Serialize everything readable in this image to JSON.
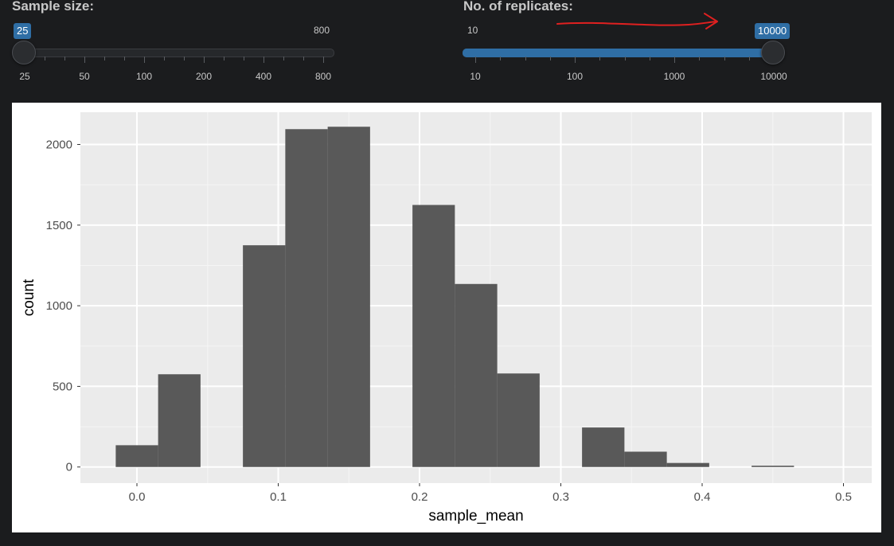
{
  "sample_size": {
    "label": "Sample size:",
    "min_label": "25",
    "max_label": "800",
    "value_label": "25",
    "ticks": [
      "25",
      "50",
      "100",
      "200",
      "400",
      "800"
    ]
  },
  "replicates": {
    "label": "No. of replicates:",
    "min_label": "10",
    "value_label": "10000",
    "ticks": [
      "10",
      "100",
      "1000",
      "10000"
    ],
    "annotation": "red-arrow-annotation"
  },
  "colors": {
    "accent": "#2f6ea5",
    "panel_bg": "#ebebeb",
    "bar_fill": "#595959",
    "annotation": "#e02020"
  },
  "chart_data": {
    "type": "bar",
    "xlabel": "sample_mean",
    "ylabel": "count",
    "xlim": [
      -0.04,
      0.52
    ],
    "ylim": [
      -100,
      2200
    ],
    "x_ticks": [
      "0.0",
      "0.1",
      "0.2",
      "0.3",
      "0.4",
      "0.5"
    ],
    "y_ticks": [
      "0",
      "500",
      "1000",
      "1500",
      "2000"
    ],
    "bins": [
      {
        "x0": -0.015,
        "x1": 0.015,
        "count": 135
      },
      {
        "x0": 0.015,
        "x1": 0.045,
        "count": 575
      },
      {
        "x0": 0.045,
        "x1": 0.075,
        "count": 0
      },
      {
        "x0": 0.075,
        "x1": 0.105,
        "count": 1375
      },
      {
        "x0": 0.105,
        "x1": 0.135,
        "count": 2095
      },
      {
        "x0": 0.135,
        "x1": 0.165,
        "count": 2110
      },
      {
        "x0": 0.165,
        "x1": 0.195,
        "count": 0
      },
      {
        "x0": 0.195,
        "x1": 0.225,
        "count": 1625
      },
      {
        "x0": 0.225,
        "x1": 0.255,
        "count": 1135
      },
      {
        "x0": 0.255,
        "x1": 0.285,
        "count": 580
      },
      {
        "x0": 0.285,
        "x1": 0.315,
        "count": 0
      },
      {
        "x0": 0.315,
        "x1": 0.345,
        "count": 245
      },
      {
        "x0": 0.345,
        "x1": 0.375,
        "count": 95
      },
      {
        "x0": 0.375,
        "x1": 0.405,
        "count": 25
      },
      {
        "x0": 0.405,
        "x1": 0.435,
        "count": 0
      },
      {
        "x0": 0.435,
        "x1": 0.465,
        "count": 8
      }
    ]
  }
}
